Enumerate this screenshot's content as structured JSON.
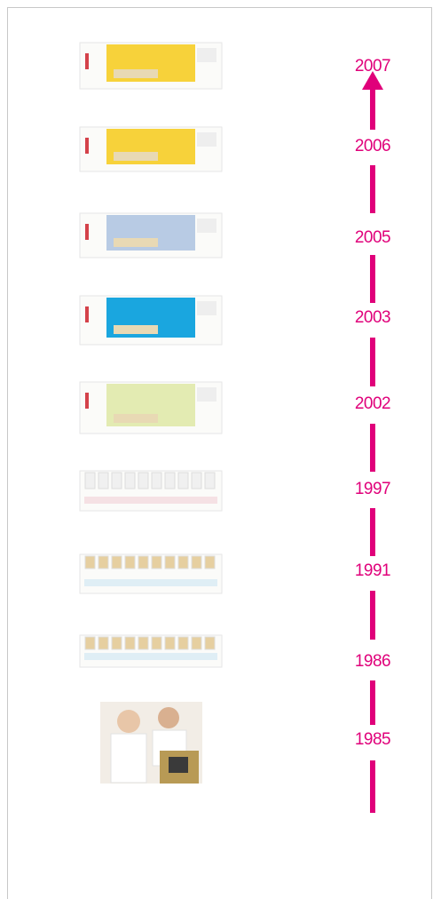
{
  "timeline": {
    "years": [
      "2007",
      "2006",
      "2005",
      "2003",
      "2002",
      "1997",
      "1991",
      "1986",
      "1985"
    ]
  }
}
